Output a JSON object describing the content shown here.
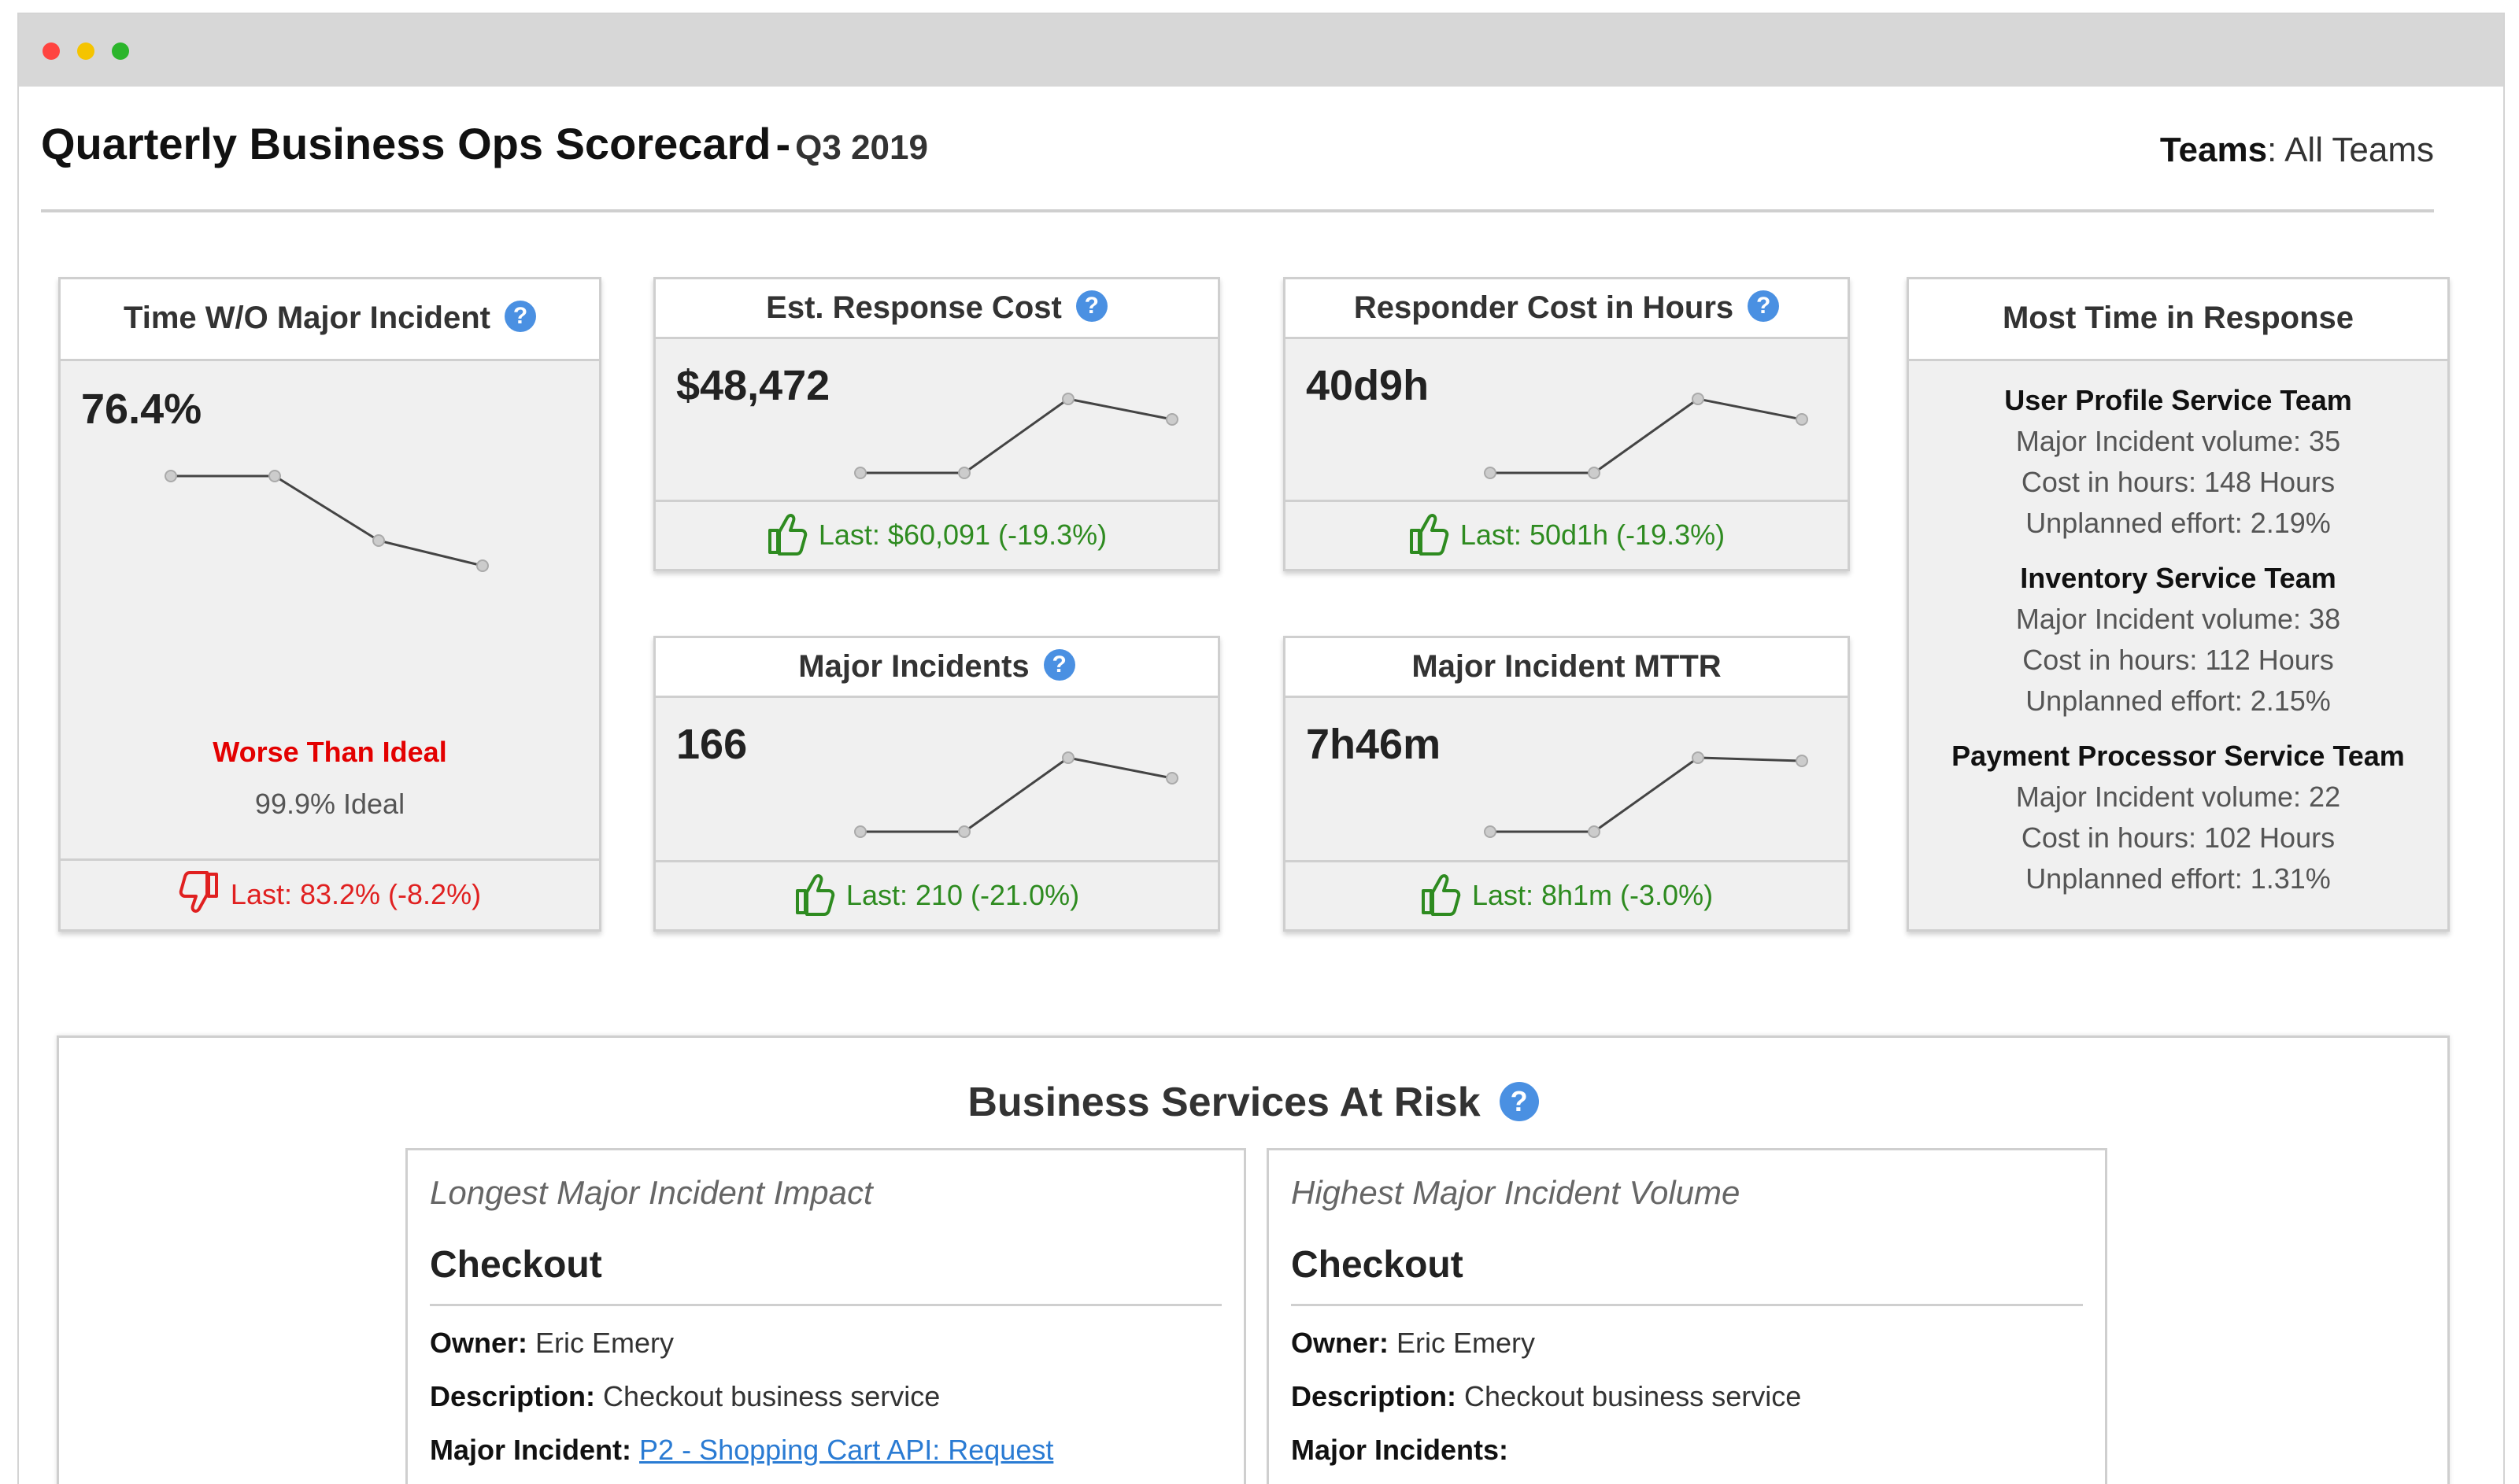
{
  "header": {
    "title": "Quarterly Business Ops Scorecard",
    "separator": "-",
    "period": "Q3 2019",
    "teams_label": "Teams",
    "teams_value": "All Teams"
  },
  "cards": {
    "time_wo_incident": {
      "title": "Time W/O Major Incident",
      "value": "76.4%",
      "status": "Worse Than Ideal",
      "ideal": "99.9% Ideal",
      "footer": "Last: 83.2%  (-8.2%)",
      "trend": "down"
    },
    "response_cost": {
      "title": "Est. Response Cost",
      "value": "$48,472",
      "footer": "Last: $60,091  (-19.3%)",
      "trend": "up"
    },
    "responder_hours": {
      "title": "Responder Cost in Hours",
      "value": "40d9h",
      "footer": "Last: 50d1h  (-19.3%)",
      "trend": "up"
    },
    "major_incidents": {
      "title": "Major Incidents",
      "value": "166",
      "footer": "Last: 210  (-21.0%)",
      "trend": "up"
    },
    "mttr": {
      "title": "Major Incident MTTR",
      "value": "7h46m",
      "footer": "Last: 8h1m  (-3.0%)",
      "trend": "up"
    },
    "most_time": {
      "title": "Most Time in Response",
      "teams": [
        {
          "name": "User Profile Service Team",
          "volume": "Major Incident volume: 35",
          "cost": "Cost in hours: 148 Hours",
          "effort": "Unplanned effort: 2.19%"
        },
        {
          "name": "Inventory Service Team",
          "volume": "Major Incident volume: 38",
          "cost": "Cost in hours: 112 Hours",
          "effort": "Unplanned effort: 2.15%"
        },
        {
          "name": "Payment Processor Service Team",
          "volume": "Major Incident volume: 22",
          "cost": "Cost in hours: 102 Hours",
          "effort": "Unplanned effort: 1.31%"
        }
      ]
    }
  },
  "at_risk": {
    "title": "Business Services At Risk",
    "services": [
      {
        "kind": "Longest Major Incident Impact",
        "name": "Checkout",
        "owner_label": "Owner:",
        "owner": "Eric Emery",
        "desc_label": "Description:",
        "desc": "Checkout business service",
        "incident_label": "Major Incident:",
        "incident": "P2 - Shopping Cart API: Request"
      },
      {
        "kind": "Highest Major Incident Volume",
        "name": "Checkout",
        "owner_label": "Owner:",
        "owner": "Eric Emery",
        "desc_label": "Description:",
        "desc": "Checkout business service",
        "incident_label": "Major Incidents:",
        "incident": ""
      }
    ]
  },
  "colors": {
    "good": "#2e8b20",
    "bad": "#e02020",
    "help": "#4a90e2",
    "link": "#2a7bd3"
  }
}
